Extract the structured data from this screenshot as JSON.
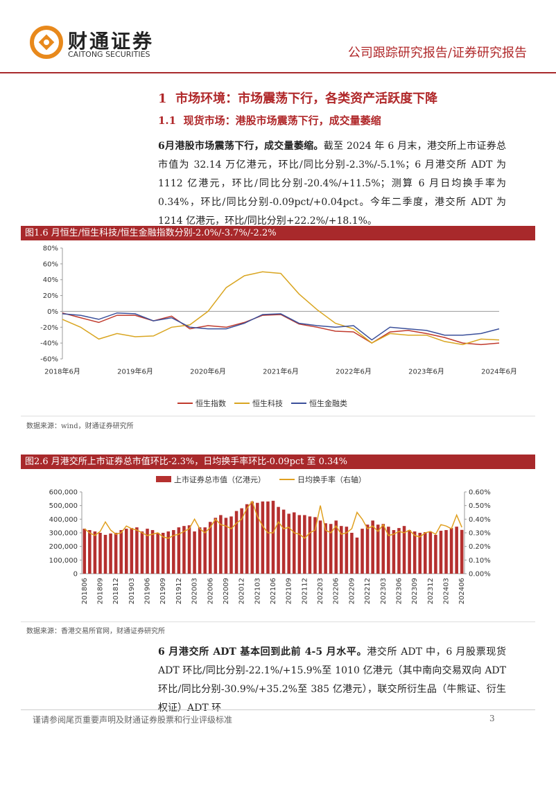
{
  "header": {
    "logo_cn": "财通证券",
    "logo_en": "CAITONG SECURITIES",
    "report_type": "公司跟踪研究报告/证券研究报告"
  },
  "section": {
    "number": "1",
    "title": "市场环境：市场震荡下行，各类资产活跃度下降"
  },
  "subsection": {
    "number": "1.1",
    "title": "现货市场：港股市场震荡下行，成交量萎缩"
  },
  "paragraphs": [
    {
      "lead": "6月港股市场震荡下行，成交量萎缩。",
      "text": "截至 2024 年 6 月末，港交所上市证券总市值为 32.14 万亿港元，环比/同比分别-2.3%/-5.1%；6 月港交所 ADT 为 1112 亿港元，环比/同比分别-20.4%/+11.5%；测算 6 月日均换手率为 0.34%，环比/同比分别-0.09pct/+0.04pct。今年二季度，港交所 ADT 为 1214 亿港元，环比/同比分别+22.2%/+18.1%。"
    },
    {
      "lead": "6 月港交所 ADT 基本回到此前 4-5 月水平。",
      "text": "港交所 ADT 中，6 月股票现货 ADT 环比/同比分别-22.1%/+15.9%至 1010 亿港元（其中南向交易双向 ADT 环比/同比分别-30.9%/+35.2%至 385 亿港元），联交所衍生品（牛熊证、衍生权证）ADT 环"
    }
  ],
  "chart_data": [
    {
      "type": "line",
      "title": "图1.6 月恒生/恒生科技/恒生金融指数分别-2.0%/-3.7%/-2.2%",
      "legend": "bottom",
      "categories": [
        "2018年6月",
        null,
        null,
        null,
        "2019年6月",
        null,
        null,
        null,
        "2020年6月",
        null,
        null,
        null,
        "2021年6月",
        null,
        null,
        null,
        "2022年6月",
        null,
        null,
        null,
        "2023年6月",
        null,
        null,
        null,
        "2024年6月"
      ],
      "ylim": [
        -60,
        80
      ],
      "yticks": [
        {
          "value": -60,
          "label": "-60%"
        },
        {
          "value": -40,
          "label": "-40%"
        },
        {
          "value": -20,
          "label": "-20%"
        },
        {
          "value": 0,
          "label": "0%"
        },
        {
          "value": 20,
          "label": "20%"
        },
        {
          "value": 40,
          "label": "40%"
        },
        {
          "value": 60,
          "label": "60%"
        },
        {
          "value": 80,
          "label": "80%"
        }
      ],
      "series": [
        {
          "name": "恒生指数",
          "color": "#c0392b",
          "values": [
            -2,
            -8,
            -14,
            -5,
            -5,
            -12,
            -6,
            -22,
            -18,
            -20,
            -14,
            -5,
            -4,
            -16,
            -20,
            -25,
            -26,
            -40,
            -26,
            -24,
            -28,
            -33,
            -40,
            -42,
            -40
          ]
        },
        {
          "name": "恒生科技",
          "color": "#d9a520",
          "values": [
            -10,
            -20,
            -35,
            -28,
            -32,
            -31,
            -20,
            -17,
            0,
            30,
            45,
            50,
            48,
            22,
            2,
            -15,
            -22,
            -40,
            -28,
            -30,
            -30,
            -38,
            -42,
            -35,
            -36
          ]
        },
        {
          "name": "恒生金融类",
          "color": "#3a4f9a",
          "values": [
            -3,
            -5,
            -10,
            -2,
            -3,
            -12,
            -8,
            -20,
            -22,
            -22,
            -15,
            -4,
            -3,
            -15,
            -18,
            -20,
            -18,
            -36,
            -20,
            -22,
            -24,
            -30,
            -30,
            -28,
            -22
          ]
        }
      ],
      "source": "数据来源：wind，财通证券研究所"
    },
    {
      "type": "bar",
      "title": "图2.6 月港交所上市证券总市值环比-2.3%，日均换手率环比-0.09pct 至 0.34%",
      "legend": "top",
      "categories": [
        "201806",
        null,
        null,
        "201809",
        null,
        null,
        "201812",
        null,
        null,
        "201903",
        null,
        null,
        "201906",
        null,
        null,
        "201909",
        null,
        null,
        "201912",
        null,
        null,
        "202003",
        null,
        null,
        "202006",
        null,
        null,
        "202009",
        null,
        null,
        "202012",
        null,
        null,
        "202103",
        null,
        null,
        "202106",
        null,
        null,
        "202109",
        null,
        null,
        "202112",
        null,
        null,
        "202203",
        null,
        null,
        "202206",
        null,
        null,
        "202209",
        null,
        null,
        "202212",
        null,
        null,
        "202303",
        null,
        null,
        "202306",
        null,
        null,
        "202309",
        null,
        null,
        "202312",
        null,
        null,
        "202403",
        null,
        null,
        "202406"
      ],
      "ylim": [
        0,
        600000
      ],
      "yticks": [
        0,
        {
          "value": 100000,
          "label": "100,000"
        },
        {
          "value": 200000,
          "label": "200,000"
        },
        {
          "value": 300000,
          "label": "300,000"
        },
        {
          "value": 400000,
          "label": "400,000"
        },
        {
          "value": 500000,
          "label": "500,000"
        },
        {
          "value": 600000,
          "label": "600,000"
        }
      ],
      "y2lim": [
        0,
        0.6
      ],
      "y2ticks": [
        {
          "value": 0,
          "label": "0.00%"
        },
        {
          "value": 0.1,
          "label": "0.10%"
        },
        {
          "value": 0.2,
          "label": "0.20%"
        },
        {
          "value": 0.3,
          "label": "0.30%"
        },
        {
          "value": 0.4,
          "label": "0.40%"
        },
        {
          "value": 0.5,
          "label": "0.50%"
        },
        {
          "value": 0.6,
          "label": "0.60%"
        }
      ],
      "series": [
        {
          "name": "上市证券总市值（亿港元）",
          "color": "#b5302f",
          "values": [
            330000,
            320000,
            310000,
            300000,
            285000,
            295000,
            300000,
            320000,
            330000,
            335000,
            340000,
            310000,
            330000,
            320000,
            300000,
            300000,
            310000,
            320000,
            340000,
            350000,
            355000,
            310000,
            340000,
            340000,
            380000,
            410000,
            430000,
            410000,
            420000,
            460000,
            480000,
            510000,
            530000,
            520000,
            530000,
            530000,
            535000,
            490000,
            470000,
            440000,
            450000,
            430000,
            430000,
            420000,
            415000,
            390000,
            370000,
            365000,
            390000,
            350000,
            345000,
            300000,
            265000,
            330000,
            360000,
            390000,
            360000,
            365000,
            345000,
            320000,
            335000,
            350000,
            320000,
            310000,
            300000,
            305000,
            310000,
            285000,
            315000,
            320000,
            335000,
            345000,
            321400
          ]
        },
        {
          "name": "日均换手率（右轴）",
          "color": "#e0a020",
          "type": "line",
          "axis": "y2",
          "values": [
            0.33,
            0.3,
            0.28,
            0.31,
            0.38,
            0.32,
            0.29,
            0.3,
            0.35,
            0.33,
            0.32,
            0.3,
            0.28,
            0.29,
            0.3,
            0.27,
            0.26,
            0.28,
            0.29,
            0.31,
            0.33,
            0.4,
            0.33,
            0.3,
            0.34,
            0.4,
            0.36,
            0.35,
            0.33,
            0.37,
            0.4,
            0.48,
            0.53,
            0.42,
            0.35,
            0.3,
            0.3,
            0.38,
            0.33,
            0.34,
            0.3,
            0.29,
            0.26,
            0.3,
            0.32,
            0.5,
            0.32,
            0.3,
            0.35,
            0.29,
            0.3,
            0.33,
            0.45,
            0.4,
            0.33,
            0.35,
            0.31,
            0.36,
            0.28,
            0.29,
            0.31,
            0.3,
            0.32,
            0.28,
            0.27,
            0.3,
            0.31,
            0.29,
            0.36,
            0.35,
            0.33,
            0.43,
            0.34
          ]
        }
      ],
      "source": "数据来源：香港交易所官网，财通证券研究所"
    }
  ],
  "footer": {
    "disclaimer": "谨请参阅尾页重要声明及财通证券股票和行业评级标准",
    "page": "3"
  }
}
